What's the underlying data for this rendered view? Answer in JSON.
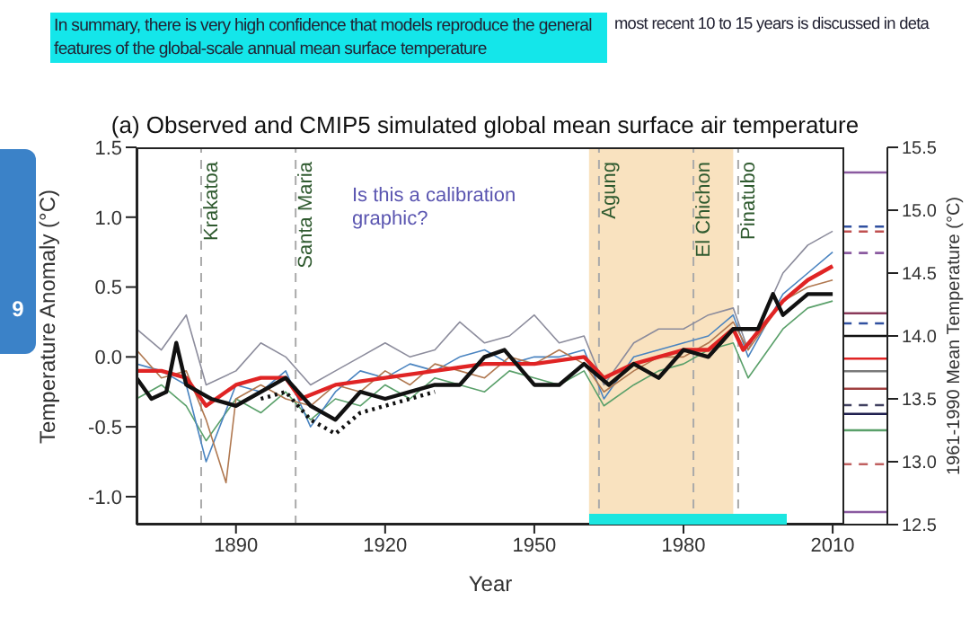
{
  "chart_data": {
    "type": "line",
    "title": "(a) Observed and CMIP5 simulated global mean surface air temperature",
    "xlabel": "Year",
    "ylabel": "Temperature Anomaly (°C)",
    "y2label": "1961-1990 Mean Temperature (°C)",
    "xlim": [
      1870,
      2021
    ],
    "xticks": [
      1890,
      1920,
      1950,
      1980,
      2010
    ],
    "ylim": [
      -1.2,
      1.5
    ],
    "yticks": [
      {
        "value": -1,
        "label": "-1.0"
      },
      {
        "value": -0.5,
        "label": "-0.5"
      },
      {
        "value": 0,
        "label": "0.0"
      },
      {
        "value": 0.5,
        "label": "0.5"
      },
      {
        "value": 1,
        "label": "1.0"
      },
      {
        "value": 1.5,
        "label": "1.5"
      }
    ],
    "y2lim": [
      12.5,
      15.5
    ],
    "y2ticks": [
      {
        "value": 12.5,
        "label": "12.5"
      },
      {
        "value": 13,
        "label": "13.0"
      },
      {
        "value": 13.5,
        "label": "13.5"
      },
      {
        "value": 14,
        "label": "14.0"
      },
      {
        "value": 14.5,
        "label": "14.5"
      },
      {
        "value": 15,
        "label": "15.0"
      },
      {
        "value": 15.5,
        "label": "15.5"
      }
    ],
    "grid": false,
    "legend": false,
    "marker": "none",
    "annotations": [
      "In summary, there is very high confidence that models reproduce the general features of the global-scale annual mean surface temperature",
      "most recent 10 to 15 years is discussed in deta",
      "9",
      "Is this a calibration graphic?"
    ],
    "ref_lines": [
      {
        "axis": "x",
        "value": 1883,
        "label": "Krakatoa",
        "color": "#aaaaaa",
        "line_style": "dashed"
      },
      {
        "axis": "x",
        "value": 1902,
        "label": "Santa Maria",
        "color": "#aaaaaa",
        "line_style": "dashed"
      },
      {
        "axis": "x",
        "value": 1963,
        "label": "Agung",
        "color": "#aaaaaa",
        "line_style": "dashed"
      },
      {
        "axis": "x",
        "value": 1982,
        "label": "El Chichon",
        "color": "#aaaaaa",
        "line_style": "dashed"
      },
      {
        "axis": "x",
        "value": 1991,
        "label": "Pinatubo",
        "color": "#aaaaaa",
        "line_style": "dashed"
      }
    ],
    "bands": [
      {
        "axis": "x",
        "from": 1961,
        "to": 1990,
        "color": "#f9e2bf"
      }
    ],
    "series": [
      {
        "axis": "y2",
        "color": "#8a5aa0",
        "x": [
          2012,
          2021
        ],
        "values": [
          15.3,
          15.3
        ]
      },
      {
        "axis": "y2",
        "color": "#3050a0",
        "line_style": "dashed",
        "x": [
          2012,
          2021
        ],
        "values": [
          14.87,
          14.87
        ]
      },
      {
        "axis": "y2",
        "color": "#c05050",
        "line_style": "dashed",
        "x": [
          2012,
          2021
        ],
        "values": [
          14.83,
          14.83
        ]
      },
      {
        "axis": "y2",
        "color": "#8a5aa0",
        "line_style": "dashed",
        "x": [
          2012,
          2021
        ],
        "values": [
          14.66,
          14.66
        ]
      },
      {
        "axis": "y2",
        "color": "#8a3a5a",
        "x": [
          2012,
          2021
        ],
        "values": [
          14.18,
          14.18
        ]
      },
      {
        "axis": "y2",
        "color": "#3050a0",
        "line_style": "dashed",
        "x": [
          2012,
          2021
        ],
        "values": [
          14.1,
          14.1
        ]
      },
      {
        "axis": "y2",
        "color": "#111111",
        "x": [
          2012,
          2021
        ],
        "values": [
          14.0,
          14.0
        ]
      },
      {
        "axis": "y2",
        "color": "#e02424",
        "x": [
          2012,
          2021
        ],
        "values": [
          13.82,
          13.82
        ]
      },
      {
        "axis": "y2",
        "color": "#7a7a7a",
        "x": [
          2012,
          2021
        ],
        "values": [
          13.72,
          13.72
        ]
      },
      {
        "axis": "y2",
        "color": "#a04040",
        "x": [
          2012,
          2021
        ],
        "values": [
          13.58,
          13.58
        ]
      },
      {
        "axis": "y2",
        "color": "#404060",
        "line_style": "dashed",
        "x": [
          2012,
          2021
        ],
        "values": [
          13.45,
          13.45
        ]
      },
      {
        "axis": "y2",
        "color": "#202050",
        "x": [
          2012,
          2021
        ],
        "values": [
          13.38,
          13.38
        ]
      },
      {
        "axis": "y2",
        "color": "#5aa06a",
        "x": [
          2012,
          2021
        ],
        "values": [
          13.25,
          13.25
        ]
      },
      {
        "axis": "y2",
        "color": "#c06060",
        "line_style": "dashed",
        "x": [
          2012,
          2021
        ],
        "values": [
          12.98,
          12.98
        ]
      },
      {
        "axis": "y2",
        "color": "#8a5aa0",
        "x": [
          2012,
          2021
        ],
        "values": [
          12.6,
          12.6
        ]
      },
      {
        "color": "#8c8c9c",
        "x": [
          1870,
          1875,
          1880,
          1884,
          1890,
          1895,
          1900,
          1905,
          1910,
          1915,
          1920,
          1925,
          1930,
          1935,
          1940,
          1945,
          1950,
          1955,
          1960,
          1964,
          1970,
          1975,
          1980,
          1985,
          1990,
          1993,
          2000,
          2005,
          2010
        ],
        "values": [
          0.2,
          0.05,
          0.3,
          -0.2,
          -0.1,
          0.1,
          0.0,
          -0.2,
          -0.1,
          0.0,
          0.1,
          0.0,
          0.05,
          0.25,
          0.1,
          0.15,
          0.3,
          0.1,
          0.15,
          -0.2,
          0.1,
          0.2,
          0.2,
          0.3,
          0.35,
          0.05,
          0.6,
          0.8,
          0.9
        ]
      },
      {
        "color": "#5aa06a",
        "x": [
          1870,
          1875,
          1880,
          1884,
          1890,
          1895,
          1900,
          1905,
          1910,
          1915,
          1920,
          1925,
          1930,
          1935,
          1940,
          1945,
          1950,
          1955,
          1960,
          1964,
          1970,
          1975,
          1980,
          1985,
          1990,
          1993,
          2000,
          2005,
          2010
        ],
        "values": [
          -0.3,
          -0.2,
          -0.35,
          -0.6,
          -0.3,
          -0.4,
          -0.25,
          -0.45,
          -0.3,
          -0.35,
          -0.2,
          -0.3,
          -0.15,
          -0.2,
          -0.25,
          -0.1,
          -0.15,
          -0.2,
          -0.1,
          -0.35,
          -0.2,
          -0.1,
          -0.05,
          0.05,
          0.1,
          -0.15,
          0.2,
          0.35,
          0.4
        ]
      },
      {
        "color": "#4a84c0",
        "x": [
          1870,
          1875,
          1880,
          1884,
          1890,
          1895,
          1900,
          1905,
          1910,
          1915,
          1920,
          1925,
          1930,
          1935,
          1940,
          1945,
          1950,
          1955,
          1960,
          1964,
          1970,
          1975,
          1980,
          1985,
          1990,
          1993,
          2000,
          2005,
          2010
        ],
        "values": [
          -0.05,
          -0.1,
          -0.2,
          -0.75,
          -0.2,
          -0.25,
          -0.1,
          -0.5,
          -0.25,
          -0.1,
          -0.15,
          -0.05,
          -0.1,
          0.0,
          0.05,
          -0.05,
          0.0,
          0.0,
          0.05,
          -0.3,
          0.0,
          0.05,
          0.1,
          0.15,
          0.3,
          0.0,
          0.45,
          0.6,
          0.75
        ]
      },
      {
        "color": "#b07850",
        "x": [
          1870,
          1875,
          1880,
          1884,
          1888,
          1890,
          1895,
          1900,
          1905,
          1910,
          1915,
          1920,
          1925,
          1930,
          1935,
          1940,
          1945,
          1950,
          1955,
          1960,
          1964,
          1970,
          1975,
          1980,
          1985,
          1990,
          1993,
          2000,
          2005,
          2010
        ],
        "values": [
          0.05,
          -0.15,
          -0.1,
          -0.45,
          -0.9,
          -0.3,
          -0.2,
          -0.3,
          -0.35,
          -0.2,
          -0.25,
          -0.1,
          -0.2,
          -0.05,
          -0.1,
          -0.15,
          0.0,
          -0.05,
          0.05,
          -0.05,
          -0.25,
          -0.1,
          0.0,
          0.0,
          0.1,
          0.25,
          0.05,
          0.4,
          0.5,
          0.55
        ]
      },
      {
        "color": "#e02424",
        "x": [
          1870,
          1875,
          1880,
          1884,
          1890,
          1895,
          1900,
          1903,
          1910,
          1920,
          1930,
          1940,
          1950,
          1960,
          1964,
          1970,
          1980,
          1985,
          1990,
          1992,
          2000,
          2005,
          2010
        ],
        "values": [
          -0.1,
          -0.1,
          -0.15,
          -0.35,
          -0.2,
          -0.15,
          -0.15,
          -0.3,
          -0.2,
          -0.15,
          -0.1,
          -0.05,
          -0.05,
          0.0,
          -0.15,
          -0.05,
          0.05,
          0.05,
          0.2,
          0.05,
          0.4,
          0.55,
          0.65
        ]
      },
      {
        "color": "#111111",
        "line_style": "dotted",
        "x": [
          1895,
          1900,
          1905,
          1910,
          1915,
          1920,
          1925,
          1930
        ],
        "values": [
          -0.3,
          -0.25,
          -0.45,
          -0.55,
          -0.4,
          -0.35,
          -0.3,
          -0.25
        ]
      },
      {
        "color": "#111111",
        "x": [
          1870,
          1873,
          1876,
          1878,
          1880,
          1885,
          1890,
          1895,
          1900,
          1905,
          1910,
          1915,
          1920,
          1925,
          1930,
          1935,
          1940,
          1944,
          1950,
          1955,
          1960,
          1965,
          1970,
          1975,
          1980,
          1985,
          1990,
          1995,
          1998,
          2000,
          2005,
          2010
        ],
        "values": [
          -0.15,
          -0.3,
          -0.25,
          0.1,
          -0.2,
          -0.3,
          -0.35,
          -0.25,
          -0.15,
          -0.35,
          -0.45,
          -0.25,
          -0.3,
          -0.25,
          -0.2,
          -0.2,
          0.0,
          0.05,
          -0.2,
          -0.2,
          -0.05,
          -0.2,
          -0.05,
          -0.15,
          0.05,
          0.0,
          0.2,
          0.2,
          0.45,
          0.3,
          0.45,
          0.45
        ]
      }
    ]
  }
}
